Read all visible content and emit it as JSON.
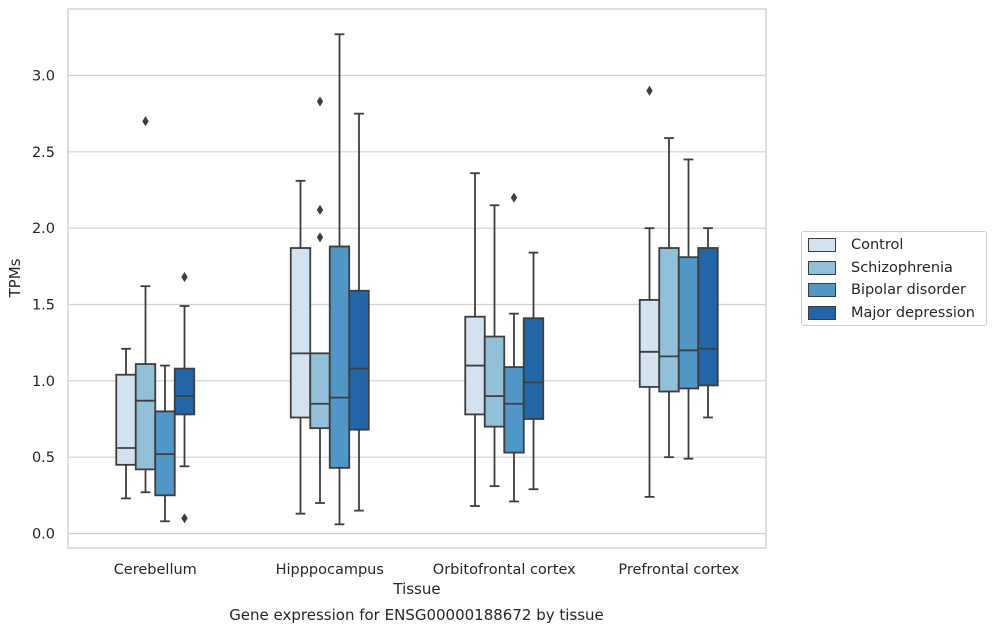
{
  "caption": "Gene expression for ENSG00000188672 by tissue",
  "chart_data": {
    "type": "box",
    "xlabel": "Tissue",
    "ylabel": "TPMs",
    "ylim": [
      -0.1,
      3.45
    ],
    "yticks": [
      "0.0",
      "0.5",
      "1.0",
      "1.5",
      "2.0",
      "2.5",
      "3.0"
    ],
    "grid": true,
    "legend_position": "right",
    "categories": [
      "Cerebellum",
      "Hipppocampus",
      "Orbitofrontal cortex",
      "Prefrontal cortex"
    ],
    "series": [
      {
        "name": "Control",
        "color": "#d2e2f1",
        "boxes": [
          {
            "whislo": 0.23,
            "q1": 0.45,
            "med": 0.56,
            "q3": 1.04,
            "whishi": 1.21,
            "fliers": []
          },
          {
            "whislo": 0.13,
            "q1": 0.76,
            "med": 1.18,
            "q3": 1.87,
            "whishi": 2.31,
            "fliers": []
          },
          {
            "whislo": 0.18,
            "q1": 0.78,
            "med": 1.1,
            "q3": 1.42,
            "whishi": 2.36,
            "fliers": []
          },
          {
            "whislo": 0.24,
            "q1": 0.96,
            "med": 1.19,
            "q3": 1.53,
            "whishi": 2.0,
            "fliers": [
              2.9
            ]
          }
        ]
      },
      {
        "name": "Schizophrenia",
        "color": "#93c0d9",
        "boxes": [
          {
            "whislo": 0.27,
            "q1": 0.42,
            "med": 0.87,
            "q3": 1.11,
            "whishi": 1.62,
            "fliers": [
              2.7
            ]
          },
          {
            "whislo": 0.2,
            "q1": 0.69,
            "med": 0.85,
            "q3": 1.18,
            "whishi": 1.18,
            "fliers": [
              1.94,
              2.12,
              2.83
            ]
          },
          {
            "whislo": 0.31,
            "q1": 0.7,
            "med": 0.9,
            "q3": 1.29,
            "whishi": 2.15,
            "fliers": []
          },
          {
            "whislo": 0.5,
            "q1": 0.93,
            "med": 1.16,
            "q3": 1.87,
            "whishi": 2.59,
            "fliers": []
          }
        ]
      },
      {
        "name": "Bipolar disorder",
        "color": "#5096c6",
        "boxes": [
          {
            "whislo": 0.08,
            "q1": 0.25,
            "med": 0.52,
            "q3": 0.8,
            "whishi": 1.1,
            "fliers": []
          },
          {
            "whislo": 0.06,
            "q1": 0.43,
            "med": 0.89,
            "q3": 1.88,
            "whishi": 3.27,
            "fliers": []
          },
          {
            "whislo": 0.21,
            "q1": 0.53,
            "med": 0.85,
            "q3": 1.09,
            "whishi": 1.44,
            "fliers": [
              2.2
            ]
          },
          {
            "whislo": 0.49,
            "q1": 0.95,
            "med": 1.2,
            "q3": 1.81,
            "whishi": 2.45,
            "fliers": []
          }
        ]
      },
      {
        "name": "Major depression",
        "color": "#2266a8",
        "boxes": [
          {
            "whislo": 0.44,
            "q1": 0.78,
            "med": 0.9,
            "q3": 1.08,
            "whishi": 1.49,
            "fliers": [
              0.1,
              1.68
            ]
          },
          {
            "whislo": 0.15,
            "q1": 0.68,
            "med": 1.08,
            "q3": 1.59,
            "whishi": 2.75,
            "fliers": []
          },
          {
            "whislo": 0.29,
            "q1": 0.75,
            "med": 0.99,
            "q3": 1.41,
            "whishi": 1.84,
            "fliers": []
          },
          {
            "whislo": 0.76,
            "q1": 0.97,
            "med": 1.21,
            "q3": 1.87,
            "whishi": 2.0,
            "fliers": []
          }
        ]
      }
    ]
  }
}
